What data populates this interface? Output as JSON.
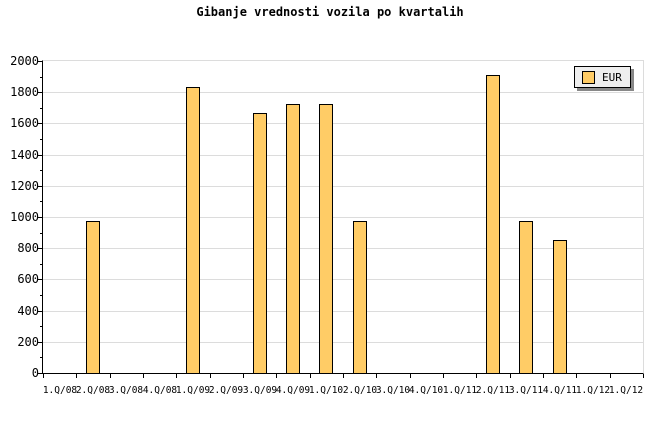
{
  "header": {
    "title": "Gibanje vrednosti vozila po kvartalih"
  },
  "legend": {
    "label": "EUR",
    "position": "top-right"
  },
  "colors": {
    "background": "#FFFFFF",
    "bar_fill": "#FFCC66",
    "bar_border": "#000000",
    "gridline": "#DCDCDC",
    "axis": "#000000",
    "legend_bg": "#EEEEEE",
    "legend_border": "#000000",
    "legend_shadow": "#888888",
    "text": "#000000"
  },
  "chart_data": {
    "type": "bar",
    "title": "Gibanje vrednosti vozila po kvartalih",
    "xlabel": "",
    "ylabel": "",
    "categories": [
      "1.Q/08",
      "2.Q/08",
      "3.Q/08",
      "4.Q/08",
      "1.Q/09",
      "2.Q/09",
      "3.Q/09",
      "4.Q/09",
      "1.Q/10",
      "2.Q/10",
      "3.Q/10",
      "4.Q/10",
      "1.Q/11",
      "2.Q/11",
      "3.Q/11",
      "4.Q/11",
      "1.Q/12",
      "1.Q/12"
    ],
    "series": [
      {
        "name": "EUR",
        "values": [
          null,
          970,
          null,
          null,
          1830,
          null,
          1660,
          1715,
          1715,
          970,
          null,
          null,
          null,
          1905,
          970,
          845,
          null,
          null
        ]
      }
    ],
    "ylim": [
      0,
      2000
    ],
    "ytick_major": 200,
    "ytick_minor": 100,
    "grid": true,
    "legend_position": "top-right"
  }
}
